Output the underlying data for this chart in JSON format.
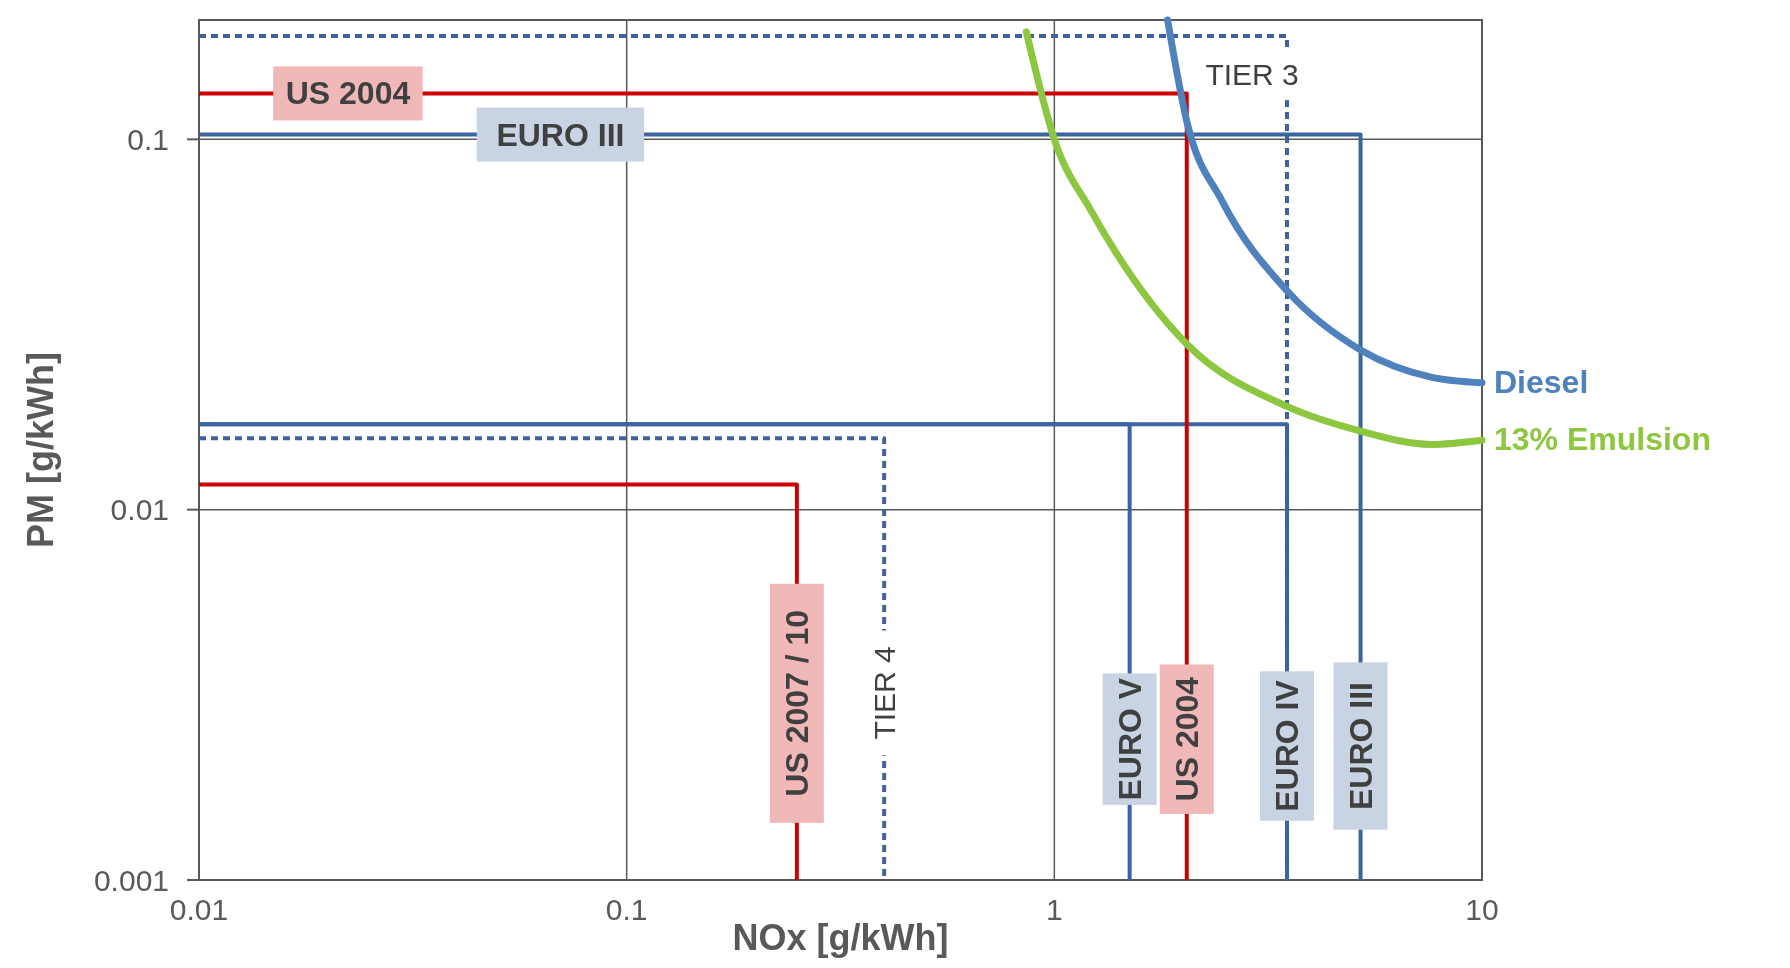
{
  "chart_data": {
    "type": "line",
    "xlabel": "NOx [g/kWh]",
    "ylabel": "PM [g/kWh]",
    "log": "xy",
    "grid": true,
    "marker": "none",
    "xlim": [
      0.01,
      10
    ],
    "ylim": [
      0.001,
      0.21
    ],
    "xticks": [
      0.01,
      0.1,
      1,
      10
    ],
    "yticks": [
      0.001,
      0.01,
      0.1
    ],
    "series": [
      {
        "color": "#3b64a0",
        "line_style": "dashed",
        "x": [
          0.01,
          3.5,
          3.5
        ],
        "values": [
          0.19,
          0.19,
          0.001
        ]
      },
      {
        "color": "#3b64a0",
        "line_style": "dashed",
        "x": [
          0.01,
          0.4,
          0.4
        ],
        "values": [
          0.0156,
          0.0156,
          0.001
        ]
      },
      {
        "color": "#3b64a0",
        "line_style": "solid",
        "x": [
          0.01,
          5.2,
          5.2
        ],
        "values": [
          0.103,
          0.103,
          0.001
        ]
      },
      {
        "color": "#3b64a0",
        "line_style": "solid",
        "x": [
          0.01,
          3.5,
          3.5
        ],
        "values": [
          0.017,
          0.017,
          0.001
        ]
      },
      {
        "color": "#3b64a0",
        "line_style": "solid",
        "x": [
          0.01,
          1.5,
          1.5
        ],
        "values": [
          0.017,
          0.017,
          0.001
        ]
      },
      {
        "color": "#cc0000",
        "line_style": "solid",
        "x": [
          0.01,
          2.04,
          2.04
        ],
        "values": [
          0.133,
          0.133,
          0.001
        ]
      },
      {
        "color": "#cc0000",
        "line_style": "solid",
        "x": [
          0.01,
          0.25,
          0.25
        ],
        "values": [
          0.0117,
          0.0117,
          0.001
        ]
      },
      {
        "name": "Diesel",
        "color": "#4f81bd",
        "line_style": "solid",
        "x": [
          1.84,
          2.04,
          2.47,
          3.5,
          5.2,
          7.6,
          10
        ],
        "values": [
          0.21,
          0.112,
          0.068,
          0.039,
          0.027,
          0.0228,
          0.022
        ]
      },
      {
        "name": "13% Emulsion",
        "color": "#8dc63f",
        "line_style": "solid",
        "x": [
          0.86,
          1,
          1.22,
          2.04,
          3.5,
          5.2,
          7.6,
          10
        ],
        "values": [
          0.195,
          0.1,
          0.064,
          0.028,
          0.019,
          0.0163,
          0.015,
          0.0154
        ]
      }
    ],
    "annotations": [
      {
        "text": "US 2004",
        "x": 0.0223,
        "y": 0.133
      },
      {
        "text": "EURO III",
        "x": 0.07,
        "y": 0.103
      },
      {
        "text": "TIER 3",
        "x": 2.9,
        "y": 0.19
      },
      {
        "text": "US 2007 / 10",
        "x": 0.25,
        "y": 0.003
      },
      {
        "text": "TIER 4",
        "x": 0.4,
        "y": 0.0032
      },
      {
        "text": "EURO V",
        "x": 1.5,
        "y": 0.0024
      },
      {
        "text": "US 2004",
        "x": 2.04,
        "y": 0.0024
      },
      {
        "text": "EURO IV",
        "x": 3.5,
        "y": 0.0023
      },
      {
        "text": "EURO III",
        "x": 5.2,
        "y": 0.0023
      }
    ]
  }
}
